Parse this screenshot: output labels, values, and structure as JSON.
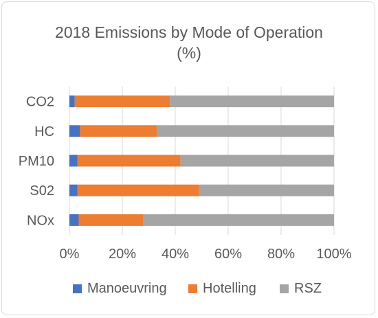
{
  "chart_data": {
    "type": "bar",
    "orientation": "horizontal",
    "stacked": "percent",
    "title": "2018 Emissions by Mode of Operation (%)",
    "title_lines": [
      "2018 Emissions by Mode of Operation",
      "(%)"
    ],
    "categories": [
      "CO2",
      "HC",
      "PM10",
      "S02",
      "NOx"
    ],
    "series": [
      {
        "name": "Manoeuvring",
        "color": "#4472c4",
        "values": [
          2,
          4,
          3,
          3,
          3.5
        ]
      },
      {
        "name": "Hotelling",
        "color": "#ed7d31",
        "values": [
          36,
          29,
          39,
          46,
          24.5
        ]
      },
      {
        "name": "RSZ",
        "color": "#a5a5a5",
        "values": [
          62,
          67,
          58,
          51,
          72
        ]
      }
    ],
    "x_ticks": [
      "0%",
      "20%",
      "40%",
      "60%",
      "80%",
      "100%"
    ],
    "xlim": [
      0,
      100
    ],
    "grid": true,
    "legend_position": "bottom"
  }
}
